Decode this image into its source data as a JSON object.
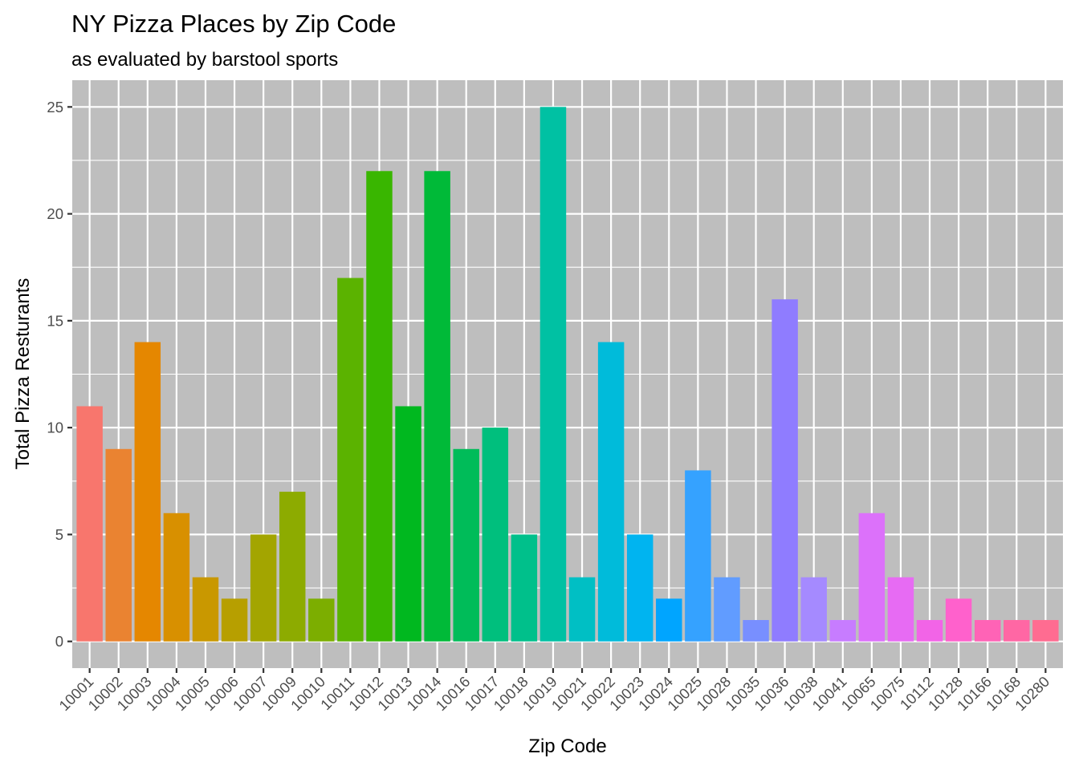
{
  "chart_data": {
    "type": "bar",
    "title": "NY Pizza Places by Zip Code",
    "subtitle": "as evaluated by barstool sports",
    "xlabel": "Zip Code",
    "ylabel": "Total Pizza Resturants",
    "ylim": [
      -1.25,
      26.25
    ],
    "yticks": [
      "0",
      "5",
      "10",
      "15",
      "20",
      "25"
    ],
    "grid": true,
    "legend": "none",
    "panel_background": "#bebebe",
    "grid_color": "#ffffff",
    "categories": [
      "10001",
      "10002",
      "10003",
      "10004",
      "10005",
      "10006",
      "10007",
      "10009",
      "10010",
      "10011",
      "10012",
      "10013",
      "10014",
      "10016",
      "10017",
      "10018",
      "10019",
      "10021",
      "10022",
      "10023",
      "10024",
      "10025",
      "10028",
      "10035",
      "10036",
      "10038",
      "10041",
      "10065",
      "10075",
      "10112",
      "10128",
      "10166",
      "10168",
      "10280"
    ],
    "values": [
      11,
      9,
      14,
      6,
      3,
      2,
      5,
      7,
      2,
      17,
      22,
      11,
      22,
      9,
      10,
      5,
      25,
      3,
      14,
      5,
      2,
      8,
      3,
      1,
      16,
      3,
      1,
      6,
      3,
      1,
      2,
      1,
      1,
      1
    ],
    "colors": [
      "#F8766D",
      "#EA8331",
      "#E58700",
      "#D89000",
      "#C99800",
      "#B79F00",
      "#A3A500",
      "#8DAB00",
      "#7CAE00",
      "#5BB300",
      "#39B600",
      "#00B81F",
      "#00BA38",
      "#00BC59",
      "#00BF7D",
      "#00C08B",
      "#00C1A3",
      "#00BFC4",
      "#00BBDA",
      "#00B4F0",
      "#00A5FF",
      "#35A2FF",
      "#619CFF",
      "#788FFF",
      "#8F7CFF",
      "#A58AFF",
      "#C77CFF",
      "#DC71FA",
      "#E76BF3",
      "#F264E7",
      "#FF61CC",
      "#FF63B6",
      "#FF67A4",
      "#FF6C91"
    ]
  }
}
